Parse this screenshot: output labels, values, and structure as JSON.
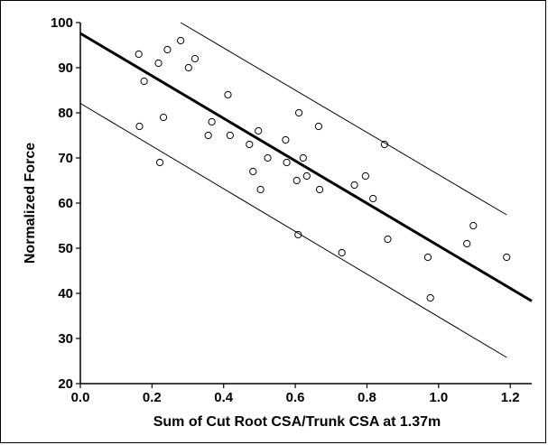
{
  "chart_data": {
    "type": "scatter",
    "xlabel": "Sum of Cut Root CSA/Trunk CSA at 1.37m",
    "ylabel": "Normalized Force",
    "xlim": [
      0.0,
      1.26
    ],
    "ylim": [
      20,
      100
    ],
    "x_ticks": [
      "0.0",
      "0.2",
      "0.4",
      "0.6",
      "0.8",
      "1.0",
      "1.2"
    ],
    "y_ticks": [
      "20",
      "30",
      "40",
      "50",
      "60",
      "70",
      "80",
      "90",
      "100"
    ],
    "grid": false,
    "points": [
      {
        "x": 0.163,
        "y": 93
      },
      {
        "x": 0.165,
        "y": 77
      },
      {
        "x": 0.178,
        "y": 87
      },
      {
        "x": 0.218,
        "y": 91
      },
      {
        "x": 0.222,
        "y": 69
      },
      {
        "x": 0.232,
        "y": 79
      },
      {
        "x": 0.243,
        "y": 94
      },
      {
        "x": 0.28,
        "y": 96
      },
      {
        "x": 0.302,
        "y": 90
      },
      {
        "x": 0.32,
        "y": 92
      },
      {
        "x": 0.357,
        "y": 75
      },
      {
        "x": 0.367,
        "y": 78
      },
      {
        "x": 0.412,
        "y": 84
      },
      {
        "x": 0.418,
        "y": 75
      },
      {
        "x": 0.472,
        "y": 73
      },
      {
        "x": 0.482,
        "y": 67
      },
      {
        "x": 0.497,
        "y": 76
      },
      {
        "x": 0.503,
        "y": 63
      },
      {
        "x": 0.523,
        "y": 70
      },
      {
        "x": 0.573,
        "y": 74
      },
      {
        "x": 0.576,
        "y": 69
      },
      {
        "x": 0.604,
        "y": 65
      },
      {
        "x": 0.608,
        "y": 53
      },
      {
        "x": 0.61,
        "y": 80
      },
      {
        "x": 0.622,
        "y": 70
      },
      {
        "x": 0.632,
        "y": 66
      },
      {
        "x": 0.665,
        "y": 77
      },
      {
        "x": 0.668,
        "y": 63
      },
      {
        "x": 0.73,
        "y": 49
      },
      {
        "x": 0.765,
        "y": 64
      },
      {
        "x": 0.796,
        "y": 66
      },
      {
        "x": 0.817,
        "y": 61
      },
      {
        "x": 0.849,
        "y": 73
      },
      {
        "x": 0.858,
        "y": 52
      },
      {
        "x": 0.97,
        "y": 48
      },
      {
        "x": 0.977,
        "y": 39
      },
      {
        "x": 1.079,
        "y": 51
      },
      {
        "x": 1.097,
        "y": 55
      },
      {
        "x": 1.19,
        "y": 48
      }
    ],
    "fit_lines": [
      {
        "role": "regression",
        "x": [
          0.0,
          1.26
        ],
        "y": [
          97.6,
          38.3
        ]
      },
      {
        "role": "upper-bound",
        "x": [
          0.28,
          1.19
        ],
        "y": [
          100,
          57.4
        ]
      },
      {
        "role": "lower-bound",
        "x": [
          0.0,
          1.19
        ],
        "y": [
          82.1,
          25.8
        ]
      }
    ]
  }
}
